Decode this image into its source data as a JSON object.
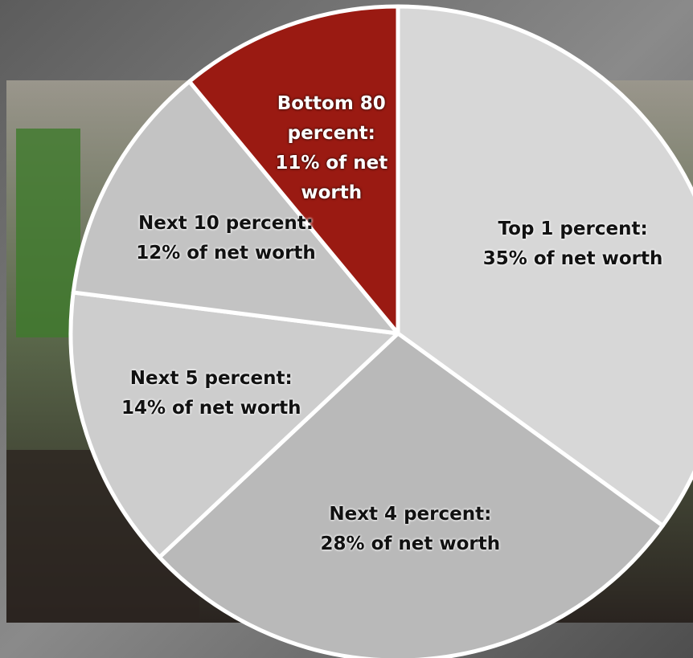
{
  "chart_data": {
    "type": "pie",
    "categories": [
      "Top 1 percent:",
      "Next 4 percent:",
      "Next 5 percent:",
      "Next 10 percent:",
      "Bottom 80 percent:"
    ],
    "values": [
      35,
      28,
      14,
      12,
      11
    ],
    "value_labels": [
      "35% of net worth",
      "28% of net worth",
      "14% of net worth",
      "12% of net worth",
      "11% of net worth"
    ],
    "colors": [
      "#d7d7d7",
      "#b9b9b9",
      "#cdcdcd",
      "#c3c3c3",
      "#9a1a12"
    ]
  }
}
